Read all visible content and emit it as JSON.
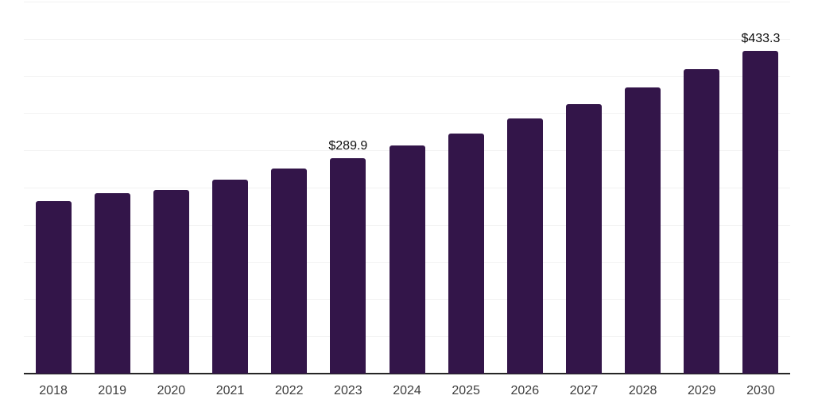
{
  "chart_data": {
    "type": "bar",
    "categories": [
      "2018",
      "2019",
      "2020",
      "2021",
      "2022",
      "2023",
      "2024",
      "2025",
      "2026",
      "2027",
      "2028",
      "2029",
      "2030"
    ],
    "values": [
      231.5,
      242.8,
      246.5,
      260.5,
      275.5,
      289.9,
      307.0,
      323.0,
      342.5,
      362.0,
      384.5,
      409.5,
      433.3
    ],
    "data_labels": [
      {
        "category": "2023",
        "text": "$289.9"
      },
      {
        "category": "2030",
        "text": "$433.3"
      }
    ],
    "title": "",
    "xlabel": "",
    "ylabel": "",
    "ylim": [
      0,
      500
    ],
    "gridline_step": 50,
    "grid": "horizontal",
    "y_axis_labels_visible": false,
    "legend": "none",
    "colors": {
      "bar": "#331549",
      "gridline": "#f2f2f2",
      "axis_line": "#262626",
      "tick_label": "#3d3d3d",
      "data_label": "#0f0f0f",
      "background": "#ffffff"
    }
  }
}
